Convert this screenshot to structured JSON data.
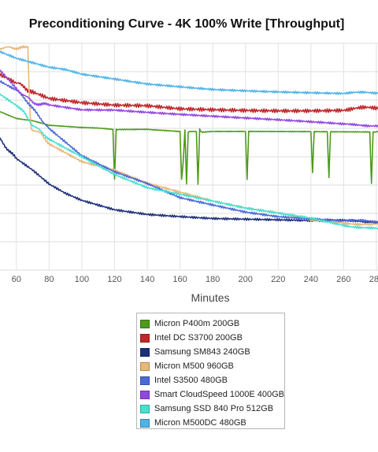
{
  "chart_data": {
    "type": "line",
    "title": "Preconditioning Curve - 4K 100% Write [Throughput]",
    "xlabel": "Minutes",
    "ylabel": "",
    "xlim": [
      50,
      281
    ],
    "ylim": [
      0,
      100
    ],
    "xticks": [
      60,
      80,
      100,
      120,
      140,
      160,
      180,
      200,
      220,
      240,
      260,
      280
    ],
    "x_tick_labels": [
      "60",
      "80",
      "100",
      "120",
      "140",
      "160",
      "180",
      "200",
      "220",
      "240",
      "260",
      "280"
    ],
    "grid": true,
    "legend_position": "bottom",
    "series": [
      {
        "name": "Micron P400m 200GB",
        "color": "#4e9a1a",
        "x": [
          50,
          60,
          70,
          80,
          100,
          119,
          120,
          121,
          122,
          140,
          160,
          161,
          162,
          163,
          164,
          165,
          166,
          170,
          171,
          172,
          173,
          180,
          200,
          201,
          202,
          210,
          220,
          240,
          241,
          242,
          250,
          251,
          252,
          260,
          270,
          276,
          277,
          278,
          281
        ],
        "values": [
          70,
          67,
          66,
          64,
          63,
          62,
          40,
          62,
          62,
          62,
          61,
          40,
          48,
          62,
          38,
          61,
          61,
          61,
          38,
          62,
          61,
          61,
          61,
          40,
          61,
          61,
          61,
          61,
          43,
          61,
          61,
          41,
          61,
          61,
          61,
          61,
          38,
          61,
          61
        ]
      },
      {
        "name": "Intel DC S3700 200GB",
        "color": "#c0282a",
        "x": [
          50,
          60,
          65,
          70,
          80,
          100,
          120,
          140,
          160,
          180,
          200,
          220,
          240,
          260,
          281
        ],
        "values": [
          86,
          82,
          81,
          78,
          75,
          73,
          72,
          72,
          71,
          71,
          71,
          71,
          71,
          71,
          71
        ]
      },
      {
        "name": "Samsung SM843 240GB",
        "color": "#1d2f78",
        "x": [
          50,
          55,
          60,
          70,
          80,
          90,
          100,
          110,
          120,
          140,
          160,
          180,
          200,
          220,
          240,
          260,
          281
        ],
        "values": [
          58,
          53,
          49,
          44,
          38,
          34,
          31,
          29,
          27,
          25,
          24,
          23,
          22.5,
          22,
          21.5,
          21.5,
          21.5
        ]
      },
      {
        "name": "Micron M500 960GB",
        "color": "#e8b878",
        "x": [
          50,
          55,
          60,
          65,
          67,
          68,
          69,
          70,
          75,
          80,
          100,
          120,
          140,
          160,
          180,
          200,
          220,
          240,
          260,
          281
        ],
        "values": [
          98,
          98,
          98,
          98,
          98,
          75,
          62,
          62,
          60,
          56,
          48,
          44,
          38,
          34,
          30,
          27,
          25,
          22,
          21,
          20
        ]
      },
      {
        "name": "Intel S3500 480GB",
        "color": "#4c68d8",
        "x": [
          50,
          60,
          65,
          70,
          75,
          80,
          90,
          100,
          120,
          140,
          160,
          180,
          200,
          220,
          240,
          260,
          281
        ],
        "values": [
          83,
          79,
          76,
          71,
          67,
          62,
          56,
          50,
          43,
          38,
          32,
          29,
          26,
          24,
          23,
          22,
          21
        ]
      },
      {
        "name": "Smart CloudSpeed 1000E 400GB",
        "color": "#9147e0",
        "x": [
          50,
          60,
          65,
          70,
          75,
          80,
          90,
          100,
          120,
          140,
          160,
          180,
          200,
          220,
          240,
          260,
          281
        ],
        "values": [
          88,
          80,
          77,
          74,
          73,
          73,
          72,
          71,
          71,
          70,
          69,
          68,
          67,
          66,
          65,
          64,
          64
        ]
      },
      {
        "name": "Samsung SSD 840 Pro 512GB",
        "color": "#46e0cf",
        "x": [
          50,
          60,
          65,
          70,
          75,
          80,
          90,
          100,
          120,
          140,
          160,
          180,
          200,
          220,
          240,
          260,
          281
        ],
        "values": [
          78,
          73,
          69,
          64,
          61,
          58,
          54,
          50,
          42,
          36,
          33,
          30,
          27,
          25,
          23,
          20,
          18
        ]
      },
      {
        "name": "Micron M500DC 480GB",
        "color": "#4fb3e8",
        "x": [
          50,
          60,
          70,
          80,
          90,
          100,
          120,
          140,
          160,
          180,
          200,
          220,
          240,
          260,
          281
        ],
        "values": [
          96,
          93,
          91,
          89,
          88,
          86,
          84,
          82,
          81,
          80,
          79.5,
          79,
          78.5,
          78,
          78
        ]
      }
    ]
  }
}
